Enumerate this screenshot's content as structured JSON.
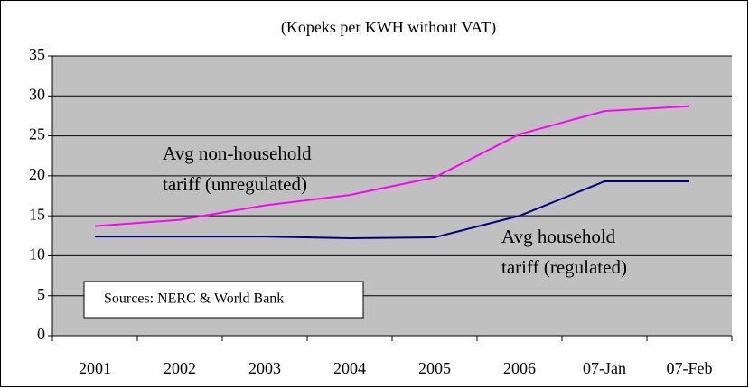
{
  "chart_data": {
    "type": "line",
    "title": "(Kopeks per KWH without VAT)",
    "categories": [
      "2001",
      "2002",
      "2003",
      "2004",
      "2005",
      "2006",
      "07-Jan",
      "07-Feb"
    ],
    "series": [
      {
        "color": "#ff00ff",
        "values": [
          13.7,
          14.5,
          16.3,
          17.6,
          19.8,
          25.2,
          28.1,
          28.7
        ]
      },
      {
        "color": "#000080",
        "values": [
          12.4,
          12.4,
          12.4,
          12.2,
          12.3,
          15.0,
          19.3,
          19.3
        ]
      }
    ],
    "ylim": [
      0,
      35
    ],
    "yticks": [
      0,
      5,
      10,
      15,
      20,
      25,
      30,
      35
    ],
    "grid": true,
    "annotations": [
      {
        "lines": [
          "Avg non-household",
          "tariff (unregulated)"
        ]
      },
      {
        "lines": [
          "Avg household",
          "tariff (regulated)"
        ]
      }
    ],
    "source": "Sources: NERC & World Bank"
  }
}
